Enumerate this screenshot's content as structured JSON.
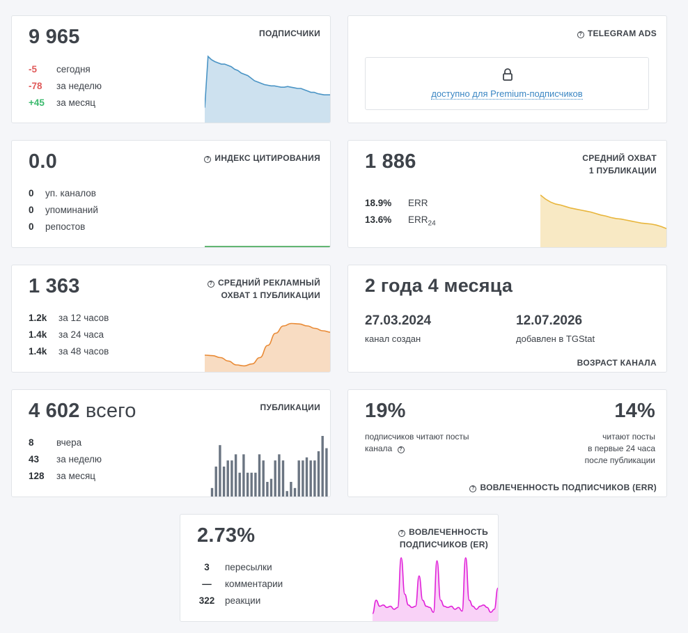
{
  "subscribers": {
    "value": "9 965",
    "title": "ПОДПИСЧИКИ",
    "rows": [
      {
        "value": "-5",
        "label": "сегодня"
      },
      {
        "value": "-78",
        "label": "за неделю"
      },
      {
        "value": "+45",
        "label": "за месяц"
      }
    ],
    "chart_values": [
      20,
      100,
      95,
      92,
      90,
      88,
      88,
      86,
      84,
      80,
      78,
      74,
      72,
      70,
      66,
      62,
      60,
      58,
      56,
      55,
      54,
      54,
      53,
      52,
      52,
      53,
      52,
      51,
      50,
      50,
      48,
      46,
      44,
      44,
      42,
      41,
      40,
      40,
      40
    ]
  },
  "ads": {
    "title": "TELEGRAM ADS",
    "locked_text": "доступно для Premium-подписчиков"
  },
  "citation": {
    "value": "0.0",
    "title": "ИНДЕКС ЦИТИРОВАНИЯ",
    "rows": [
      {
        "value": "0",
        "label": "уп. каналов"
      },
      {
        "value": "0",
        "label": "упоминаний"
      },
      {
        "value": "0",
        "label": "репостов"
      }
    ]
  },
  "reach": {
    "value": "1 886",
    "title_line1": "СРЕДНИЙ ОХВАТ",
    "title_line2": "1 ПУБЛИКАЦИИ",
    "err_value": "18.9%",
    "err_label": "ERR",
    "err24_value": "13.6%",
    "err24_label": "ERR",
    "err24_sub": "24",
    "chart_values": [
      100,
      92,
      86,
      82,
      80,
      77,
      74,
      72,
      70,
      68,
      66,
      63,
      60,
      58,
      55,
      53,
      52,
      50,
      48,
      46,
      44,
      43,
      42,
      40,
      37,
      33
    ]
  },
  "adreach": {
    "value": "1 363",
    "title_line1": "СРЕДНИЙ РЕКЛАМНЫЙ",
    "title_line2": "ОХВАТ 1 ПУБЛИКАЦИИ",
    "rows": [
      {
        "value": "1.2k",
        "label": "за 12 часов"
      },
      {
        "value": "1.4k",
        "label": "за 24 часа"
      },
      {
        "value": "1.4k",
        "label": "за 48 часов"
      }
    ],
    "chart_values": [
      30,
      29,
      25,
      18,
      10,
      8,
      12,
      25,
      50,
      75,
      90,
      95,
      94,
      90,
      85,
      80,
      77
    ]
  },
  "age": {
    "value": "2 года 4 месяца",
    "created_date": "27.03.2024",
    "created_label": "канал создан",
    "added_date": "12.07.2026",
    "added_label": "добавлен в TGStat",
    "title": "ВОЗРАСТ КАНАЛА"
  },
  "publications": {
    "value": "4 602",
    "value_suffix": "всего",
    "title": "ПУБЛИКАЦИИ",
    "rows": [
      {
        "value": "8",
        "label": "вчера"
      },
      {
        "value": "43",
        "label": "за неделю"
      },
      {
        "value": "128",
        "label": "за месяц"
      }
    ],
    "bars": [
      3,
      10,
      17,
      10,
      12,
      12,
      14,
      8,
      14,
      8,
      8,
      8,
      14,
      12,
      5,
      6,
      12,
      14,
      12,
      2,
      5,
      3,
      12,
      12,
      13,
      12,
      12,
      15,
      20,
      16
    ]
  },
  "engagement_err": {
    "left_value": "19%",
    "left_line1": "подписчиков читают посты",
    "left_line2": "канала",
    "right_value": "14%",
    "right_line1": "читают посты",
    "right_line2": "в первые 24 часа",
    "right_line3": "после публикации",
    "title": "ВОВЛЕЧЕННОСТЬ ПОДПИСЧИКОВ (ERR)"
  },
  "engagement_er": {
    "value": "2.73%",
    "title_line1": "ВОВЛЕЧЕННОСТЬ",
    "title_line2": "ПОДПИСЧИКОВ (ER)",
    "rows": [
      {
        "value": "3",
        "label": "пересылки"
      },
      {
        "value": "—",
        "label": "комментарии"
      },
      {
        "value": "322",
        "label": "реакции"
      }
    ],
    "chart_values": [
      8,
      30,
      20,
      22,
      18,
      20,
      15,
      18,
      100,
      40,
      22,
      18,
      20,
      70,
      30,
      20,
      18,
      10,
      95,
      30,
      20,
      18,
      20,
      15,
      18,
      12,
      100,
      30,
      20,
      15,
      20,
      22,
      18,
      10,
      15,
      50
    ]
  },
  "colors": {
    "blue": "#4a94c5",
    "gold": "#e8b53b",
    "orange": "#e98a35",
    "green": "#2f9e44",
    "gray_bar": "#6b7582",
    "magenta": "#e020d8"
  }
}
